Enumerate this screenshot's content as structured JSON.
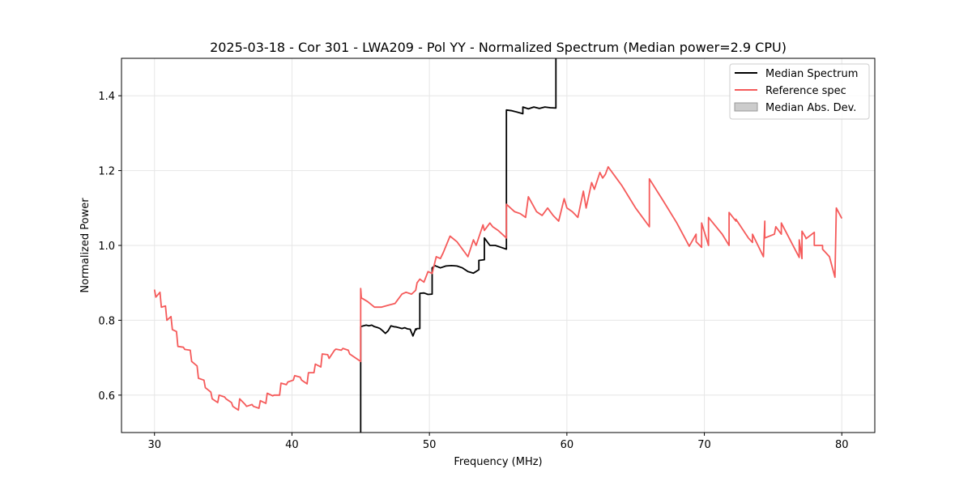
{
  "chart_data": {
    "type": "line",
    "title": "2025-03-18 - Cor 301 - LWA209 - Pol YY - Normalized Spectrum (Median power=2.9 CPU)",
    "xlabel": "Frequency (MHz)",
    "ylabel": "Normalized Power",
    "xlim": [
      27.6,
      82.4
    ],
    "ylim": [
      0.5,
      1.5
    ],
    "xticks": [
      30,
      40,
      50,
      60,
      70,
      80
    ],
    "yticks": [
      0.6,
      0.8,
      1.0,
      1.2,
      1.4
    ],
    "grid": true,
    "legend_position": "top-right",
    "legend": [
      "Median Spectrum",
      "Reference spec",
      "Median Abs. Dev."
    ],
    "series": [
      {
        "name": "Median Spectrum",
        "color": "#000000",
        "x": [
          45.0,
          45.0,
          45.2,
          45.4,
          45.6,
          45.8,
          46.0,
          46.2,
          46.4,
          46.6,
          46.8,
          47.0,
          47.2,
          47.4,
          47.6,
          47.8,
          48.0,
          48.2,
          48.4,
          48.6,
          48.8,
          49.0,
          49.05,
          49.1,
          49.3,
          49.3,
          49.6,
          49.9,
          50.2,
          50.2,
          50.4,
          50.8,
          51.2,
          51.6,
          52.0,
          52.4,
          52.8,
          53.2,
          53.6,
          53.6,
          54.0,
          54.0,
          54.4,
          54.8,
          55.2,
          55.6,
          55.6,
          56.0,
          56.4,
          56.8,
          56.8,
          57.2,
          57.6,
          58.0,
          58.4,
          58.8,
          59.2,
          59.2
        ],
        "y": [
          0.5,
          0.783,
          0.785,
          0.787,
          0.785,
          0.787,
          0.783,
          0.781,
          0.778,
          0.772,
          0.765,
          0.772,
          0.785,
          0.783,
          0.782,
          0.78,
          0.778,
          0.78,
          0.777,
          0.776,
          0.758,
          0.777,
          0.775,
          0.778,
          0.778,
          0.872,
          0.873,
          0.869,
          0.87,
          0.94,
          0.946,
          0.94,
          0.945,
          0.946,
          0.945,
          0.94,
          0.93,
          0.926,
          0.935,
          0.96,
          0.962,
          1.02,
          1.0,
          1.0,
          0.995,
          0.99,
          1.362,
          1.36,
          1.356,
          1.352,
          1.37,
          1.365,
          1.37,
          1.366,
          1.37,
          1.368,
          1.367,
          1.5
        ]
      },
      {
        "name": "Reference spec",
        "color": "#f55a5a",
        "x": [
          30.0,
          30.1,
          30.4,
          30.5,
          30.8,
          30.9,
          31.2,
          31.3,
          31.6,
          31.7,
          32.1,
          32.2,
          32.6,
          32.7,
          33.1,
          33.2,
          33.6,
          33.7,
          34.1,
          34.2,
          34.6,
          34.7,
          35.1,
          35.2,
          35.6,
          35.7,
          36.1,
          36.2,
          36.6,
          36.7,
          37.1,
          37.2,
          37.6,
          37.7,
          38.1,
          38.2,
          38.6,
          38.7,
          39.1,
          39.2,
          39.6,
          39.7,
          40.1,
          40.2,
          40.6,
          40.7,
          41.1,
          41.2,
          41.6,
          41.7,
          42.1,
          42.2,
          42.6,
          42.7,
          43.1,
          43.2,
          43.6,
          43.7,
          44.1,
          44.2,
          44.6,
          45.0,
          45.0,
          45.05,
          45.5,
          46.0,
          46.5,
          47.0,
          47.5,
          47.6,
          48.0,
          48.3,
          48.7,
          49.0,
          49.1,
          49.3,
          49.6,
          49.9,
          50.2,
          50.5,
          50.8,
          51.0,
          51.5,
          52.0,
          52.4,
          52.8,
          53.2,
          53.4,
          53.9,
          54.0,
          54.4,
          54.6,
          55.0,
          55.6,
          55.6,
          56.2,
          56.6,
          57.0,
          57.2,
          57.8,
          58.2,
          58.6,
          59.0,
          59.4,
          59.8,
          60.0,
          60.4,
          60.8,
          61.2,
          61.4,
          61.8,
          62.0,
          62.4,
          62.6,
          62.8,
          63.0,
          64.0,
          65.0,
          66.0,
          66.0,
          67.0,
          68.0,
          68.9,
          69.4,
          69.4,
          69.8,
          69.8,
          70.3,
          70.3,
          71.3,
          71.8,
          71.8,
          72.3,
          72.3,
          73.2,
          73.5,
          73.5,
          74.3,
          74.4,
          74.4,
          75.1,
          75.2,
          75.6,
          75.6,
          76.9,
          76.9,
          77.1,
          77.1,
          77.4,
          77.4,
          78.0,
          78.0,
          78.6,
          78.6,
          79.1,
          79.5,
          79.6,
          80.0
        ],
        "y": [
          0.882,
          0.862,
          0.875,
          0.835,
          0.838,
          0.8,
          0.81,
          0.775,
          0.77,
          0.73,
          0.728,
          0.722,
          0.72,
          0.69,
          0.678,
          0.645,
          0.64,
          0.62,
          0.608,
          0.59,
          0.58,
          0.6,
          0.595,
          0.59,
          0.58,
          0.57,
          0.56,
          0.59,
          0.575,
          0.57,
          0.575,
          0.57,
          0.565,
          0.585,
          0.578,
          0.605,
          0.598,
          0.6,
          0.6,
          0.632,
          0.628,
          0.635,
          0.64,
          0.652,
          0.648,
          0.64,
          0.63,
          0.66,
          0.66,
          0.683,
          0.675,
          0.71,
          0.708,
          0.698,
          0.72,
          0.723,
          0.72,
          0.725,
          0.72,
          0.71,
          0.7,
          0.69,
          0.885,
          0.86,
          0.85,
          0.835,
          0.835,
          0.84,
          0.845,
          0.85,
          0.87,
          0.875,
          0.87,
          0.88,
          0.9,
          0.91,
          0.902,
          0.93,
          0.925,
          0.97,
          0.965,
          0.98,
          1.025,
          1.01,
          0.99,
          0.97,
          1.015,
          1.0,
          1.055,
          1.04,
          1.06,
          1.05,
          1.04,
          1.02,
          1.11,
          1.09,
          1.085,
          1.075,
          1.13,
          1.09,
          1.08,
          1.1,
          1.08,
          1.065,
          1.125,
          1.1,
          1.09,
          1.075,
          1.145,
          1.1,
          1.168,
          1.15,
          1.195,
          1.18,
          1.19,
          1.21,
          1.16,
          1.1,
          1.05,
          1.178,
          1.12,
          1.06,
          0.998,
          1.03,
          1.01,
          0.995,
          1.06,
          1.0,
          1.075,
          1.03,
          1.0,
          1.088,
          1.065,
          1.07,
          1.02,
          1.008,
          1.03,
          0.97,
          1.065,
          1.02,
          1.03,
          1.05,
          1.03,
          1.06,
          0.968,
          1.015,
          0.965,
          1.038,
          1.02,
          1.018,
          1.035,
          1.0,
          1.0,
          0.99,
          0.97,
          0.915,
          1.1,
          1.072
        ]
      }
    ]
  }
}
